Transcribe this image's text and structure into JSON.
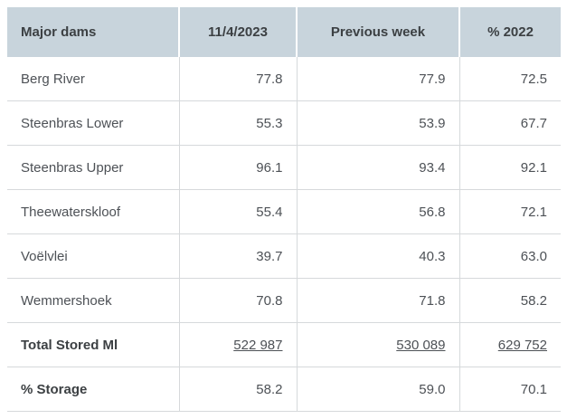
{
  "colors": {
    "header_bg": "#c8d4dc",
    "header_text": "#3c4043",
    "body_text": "#4d5156",
    "border": "#d6d9db",
    "page_bg": "#ffffff"
  },
  "chart_data": {
    "type": "table",
    "columns": [
      "Major dams",
      "11/4/2023",
      "Previous week",
      "% 2022"
    ],
    "rows": [
      [
        "Berg River",
        "77.8",
        "77.9",
        "72.5"
      ],
      [
        "Steenbras Lower",
        "55.3",
        "53.9",
        "67.7"
      ],
      [
        "Steenbras Upper",
        "96.1",
        "93.4",
        "92.1"
      ],
      [
        "Theewaterskloof",
        "55.4",
        "56.8",
        "72.1"
      ],
      [
        "Voëlvlei",
        "39.7",
        "40.3",
        "63.0"
      ],
      [
        "Wemmershoek",
        "70.8",
        "71.8",
        "58.2"
      ],
      [
        "Total Stored Ml",
        "522 987",
        "530 089",
        "629 752"
      ],
      [
        "% Storage",
        "58.2",
        "59.0",
        "70.1"
      ]
    ],
    "layout_hints": {
      "header_align": "center",
      "first_column_align": "left",
      "value_align": "right",
      "totals_row_underlined": true,
      "summary_row_labels_bold": true
    }
  }
}
